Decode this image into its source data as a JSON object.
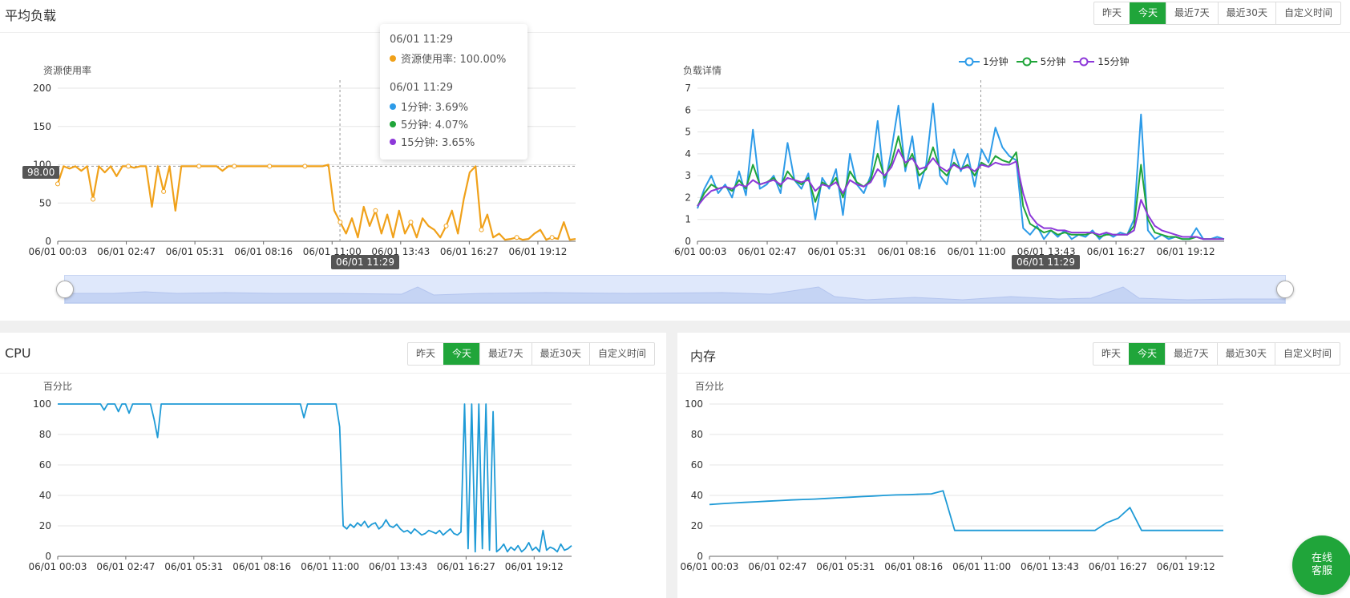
{
  "colors": {
    "accent": "#20a53a",
    "load": "#f0a11a",
    "cpu": "#1e9ad6",
    "mem": "#1e9ad6",
    "one_min": "#2d9be8",
    "five_min": "#20a53a",
    "fifteen_min": "#8d38d9"
  },
  "time_buttons": [
    "昨天",
    "今天",
    "最近7天",
    "最近30天",
    "自定义时间"
  ],
  "active_button": "今天",
  "load_panel": {
    "title": "平均负载",
    "marker_value": "98.00",
    "crosshair_label": "06/01 11:29",
    "legend": [
      {
        "name": "1分钟"
      },
      {
        "name": "5分钟"
      },
      {
        "name": "15分钟"
      }
    ],
    "tooltip": {
      "time1": "06/01 11:29",
      "usage_label": "资源使用率: 100.00%",
      "time2": "06/01 11:29",
      "one_label": "1分钟: 3.69%",
      "five_label": "5分钟: 4.07%",
      "fifteen_label": "15分钟: 3.65%"
    }
  },
  "cpu_panel": {
    "title": "CPU"
  },
  "mem_panel": {
    "title": "内存"
  },
  "chat_button": {
    "line1": "在线",
    "line2": "客服"
  },
  "chart_data": [
    {
      "type": "line",
      "id": "usage",
      "ylabel": "资源使用率",
      "ylim": [
        0,
        200
      ],
      "yticks": [
        0,
        50,
        100,
        150,
        200
      ],
      "xticks": [
        "06/01 00:03",
        "06/01 02:47",
        "06/01 05:31",
        "06/01 08:16",
        "06/01 11:00",
        "06/01 13:43",
        "06/01 16:27",
        "06/01 19:12"
      ],
      "series": [
        {
          "name": "资源使用率",
          "values": [
            75,
            98,
            95,
            98,
            92,
            98,
            55,
            98,
            90,
            98,
            85,
            98,
            98,
            96,
            98,
            98,
            45,
            98,
            65,
            98,
            40,
            98,
            98,
            98,
            98,
            98,
            98,
            98,
            92,
            98,
            98,
            98,
            98,
            98,
            98,
            98,
            98,
            98,
            98,
            98,
            98,
            98,
            98,
            98,
            98,
            98,
            100,
            40,
            25,
            10,
            30,
            5,
            45,
            20,
            40,
            10,
            35,
            5,
            40,
            10,
            25,
            5,
            30,
            20,
            15,
            5,
            20,
            40,
            10,
            55,
            90,
            98,
            15,
            35,
            5,
            10,
            2,
            3,
            5,
            2,
            3,
            10,
            15,
            2,
            5,
            3,
            25,
            2,
            3
          ]
        }
      ]
    },
    {
      "type": "line",
      "id": "load",
      "ylabel": "负载详情",
      "ylim": [
        0,
        7
      ],
      "yticks": [
        0,
        1,
        2,
        3,
        4,
        5,
        6,
        7
      ],
      "xticks": [
        "06/01 00:03",
        "06/01 02:47",
        "06/01 05:31",
        "06/01 08:16",
        "06/01 11:00",
        "06/01 13:43",
        "06/01 16:27",
        "06/01 19:12"
      ],
      "series": [
        {
          "name": "1分钟",
          "values": [
            1.5,
            2.4,
            3.0,
            2.2,
            2.6,
            2.0,
            3.2,
            2.1,
            5.1,
            2.4,
            2.6,
            3.0,
            2.2,
            4.5,
            2.8,
            2.4,
            3.1,
            1.0,
            2.9,
            2.4,
            3.3,
            1.2,
            4.0,
            2.6,
            2.2,
            3.0,
            5.5,
            2.5,
            4.2,
            6.2,
            3.2,
            4.8,
            2.4,
            3.5,
            6.3,
            3.0,
            2.6,
            4.2,
            3.2,
            4.0,
            2.5,
            4.2,
            3.6,
            5.2,
            4.3,
            3.9,
            3.7,
            0.6,
            0.3,
            0.7,
            0.1,
            0.5,
            0.2,
            0.5,
            0.1,
            0.3,
            0.2,
            0.5,
            0.1,
            0.4,
            0.2,
            0.4,
            0.3,
            1.0,
            5.8,
            0.5,
            0.1,
            0.3,
            0.1,
            0.2,
            0.1,
            0.1,
            0.6,
            0.1,
            0.1,
            0.2,
            0.1
          ]
        },
        {
          "name": "5分钟",
          "values": [
            1.6,
            2.2,
            2.6,
            2.4,
            2.5,
            2.3,
            2.8,
            2.4,
            3.5,
            2.6,
            2.7,
            2.9,
            2.5,
            3.2,
            2.8,
            2.6,
            2.9,
            1.8,
            2.7,
            2.5,
            2.9,
            2.0,
            3.2,
            2.7,
            2.5,
            2.8,
            4.0,
            2.9,
            3.6,
            4.8,
            3.4,
            4.0,
            3.0,
            3.3,
            4.3,
            3.3,
            3.0,
            3.6,
            3.3,
            3.5,
            3.0,
            3.6,
            3.4,
            3.9,
            3.7,
            3.6,
            4.07,
            1.6,
            0.8,
            0.6,
            0.4,
            0.5,
            0.3,
            0.4,
            0.3,
            0.3,
            0.3,
            0.4,
            0.2,
            0.3,
            0.3,
            0.3,
            0.3,
            0.7,
            3.5,
            1.0,
            0.4,
            0.3,
            0.2,
            0.2,
            0.1,
            0.1,
            0.2,
            0.1,
            0.1,
            0.1,
            0.1
          ]
        },
        {
          "name": "15分钟",
          "values": [
            1.6,
            2.0,
            2.3,
            2.4,
            2.5,
            2.4,
            2.6,
            2.5,
            2.8,
            2.6,
            2.7,
            2.8,
            2.6,
            2.9,
            2.8,
            2.7,
            2.8,
            2.3,
            2.6,
            2.5,
            2.7,
            2.2,
            2.8,
            2.6,
            2.5,
            2.7,
            3.3,
            3.0,
            3.4,
            4.2,
            3.6,
            3.8,
            3.3,
            3.4,
            3.8,
            3.4,
            3.2,
            3.5,
            3.3,
            3.4,
            3.2,
            3.5,
            3.4,
            3.6,
            3.5,
            3.5,
            3.65,
            2.2,
            1.2,
            0.8,
            0.6,
            0.6,
            0.5,
            0.5,
            0.4,
            0.4,
            0.4,
            0.4,
            0.3,
            0.4,
            0.3,
            0.3,
            0.3,
            0.5,
            1.9,
            1.2,
            0.7,
            0.5,
            0.4,
            0.3,
            0.2,
            0.2,
            0.2,
            0.1,
            0.1,
            0.1,
            0.1
          ]
        }
      ]
    },
    {
      "type": "line",
      "id": "cpu",
      "ylabel": "百分比",
      "ylim": [
        0,
        100
      ],
      "yticks": [
        0,
        20,
        40,
        60,
        80,
        100
      ],
      "xticks": [
        "06/01 00:03",
        "06/01 02:47",
        "06/01 05:31",
        "06/01 08:16",
        "06/01 11:00",
        "06/01 13:43",
        "06/01 16:27",
        "06/01 19:12"
      ],
      "series": [
        {
          "name": "CPU",
          "values": [
            100,
            100,
            100,
            100,
            100,
            100,
            100,
            100,
            100,
            100,
            100,
            100,
            100,
            96,
            100,
            100,
            100,
            95,
            100,
            100,
            94,
            100,
            100,
            100,
            100,
            100,
            100,
            90,
            78,
            100,
            100,
            100,
            100,
            100,
            100,
            100,
            100,
            100,
            100,
            100,
            100,
            100,
            100,
            100,
            100,
            100,
            100,
            100,
            100,
            100,
            100,
            100,
            100,
            100,
            100,
            100,
            100,
            100,
            100,
            100,
            100,
            100,
            100,
            100,
            100,
            100,
            100,
            100,
            100,
            91,
            100,
            100,
            100,
            100,
            100,
            100,
            100,
            100,
            100,
            85,
            20,
            18,
            21,
            19,
            22,
            20,
            23,
            19,
            21,
            22,
            18,
            20,
            24,
            20,
            19,
            21,
            18,
            16,
            17,
            15,
            18,
            16,
            14,
            15,
            17,
            16,
            15,
            17,
            14,
            16,
            18,
            15,
            14,
            16,
            100,
            5,
            100,
            3,
            100,
            5,
            100,
            4,
            95,
            3,
            5,
            8,
            3,
            6,
            4,
            7,
            3,
            5,
            9,
            4,
            6,
            3,
            17,
            4,
            6,
            5,
            3,
            8,
            4,
            5,
            7
          ]
        }
      ]
    },
    {
      "type": "line",
      "id": "mem",
      "ylabel": "百分比",
      "ylim": [
        0,
        100
      ],
      "yticks": [
        0,
        20,
        40,
        60,
        80,
        100
      ],
      "xticks": [
        "06/01 00:03",
        "06/01 02:47",
        "06/01 05:31",
        "06/01 08:16",
        "06/01 11:00",
        "06/01 13:43",
        "06/01 16:27",
        "06/01 19:12"
      ],
      "series": [
        {
          "name": "内存",
          "values": [
            34,
            34.5,
            35,
            35.4,
            35.8,
            36.2,
            36.6,
            37,
            37.3,
            37.6,
            38,
            38.4,
            38.8,
            39.2,
            39.6,
            40,
            40.3,
            40.5,
            40.8,
            41,
            43,
            17,
            17,
            17,
            17,
            17,
            17,
            17,
            17,
            17,
            17,
            17,
            17,
            17,
            22,
            25,
            32,
            17,
            17,
            17,
            17,
            17,
            17,
            17,
            17
          ]
        }
      ]
    }
  ]
}
